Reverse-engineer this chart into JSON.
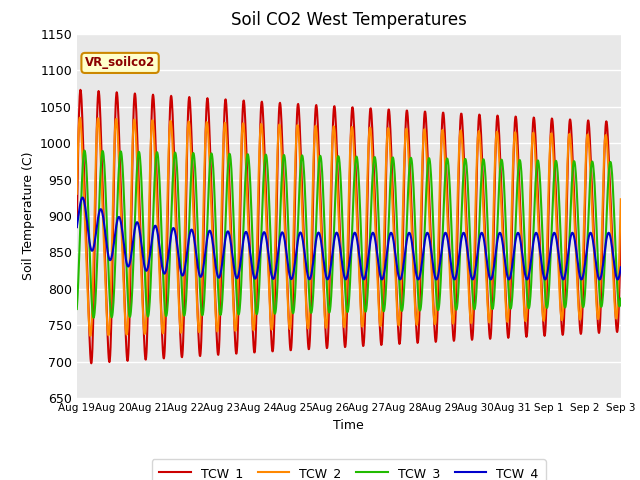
{
  "title": "Soil CO2 West Temperatures",
  "xlabel": "Time",
  "ylabel": "Soil Temperature (C)",
  "ylim": [
    650,
    1150
  ],
  "yticks": [
    650,
    700,
    750,
    800,
    850,
    900,
    950,
    1000,
    1050,
    1100,
    1150
  ],
  "label_box_text": "VR_soilco2",
  "legend_labels": [
    "TCW_1",
    "TCW_2",
    "TCW_3",
    "TCW_4"
  ],
  "line_colors": [
    "#cc0000",
    "#ff8800",
    "#22bb00",
    "#0000cc"
  ],
  "line_width": 1.5,
  "bg_color": "#e8e8e8",
  "fig_bg": "#ffffff",
  "x_tick_labels": [
    "Aug 19",
    "Aug 20",
    "Aug 21",
    "Aug 22",
    "Aug 23",
    "Aug 24",
    "Aug 25",
    "Aug 26",
    "Aug 27",
    "Aug 28",
    "Aug 29",
    "Aug 30",
    "Aug 31",
    "Sep 1",
    "Sep 2",
    "Sep 3"
  ],
  "n_days": 15,
  "n_points": 1500,
  "tcw1_base": 885,
  "tcw1_amp": 210,
  "tcw2_base": 885,
  "tcw2_amp": 165,
  "tcw3_base": 875,
  "tcw3_amp": 115,
  "tcw4_base": 845,
  "tcw4_amp": 32,
  "freq_per_day": 2.0,
  "phase1": 0.0,
  "phase2": 0.25,
  "phase3": -1.1,
  "phase4": -0.5,
  "tcw1_amp_decay": 0.018,
  "tcw2_amp_decay": 0.012,
  "tcw3_amp_decay": 0.01,
  "tcw4_amp_decay": 0.0,
  "tcw4_freq_factor": 1.0
}
